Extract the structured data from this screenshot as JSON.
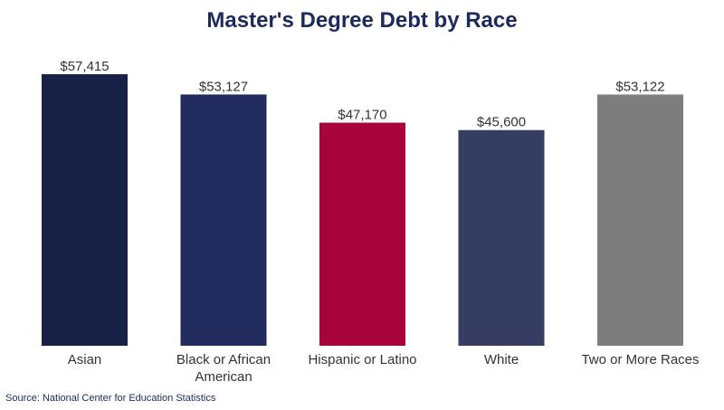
{
  "chart_data": {
    "type": "bar",
    "title": "Master's Degree Debt by Race",
    "categories": [
      "Asian",
      "Black or African American",
      "Hispanic or Latino",
      "White",
      "Two or More Races"
    ],
    "category_lines": [
      [
        "Asian"
      ],
      [
        "Black or African",
        "American"
      ],
      [
        "Hispanic or Latino"
      ],
      [
        "White"
      ],
      [
        "Two or More Races"
      ]
    ],
    "values": [
      57415,
      53127,
      47170,
      45600,
      53122
    ],
    "value_labels": [
      "$57,415",
      "$53,127",
      "$47,170",
      "$45,600",
      "$53,122"
    ],
    "colors": [
      "#172045",
      "#222b5e",
      "#a8033b",
      "#353e62",
      "#7d7d7d"
    ],
    "xlabel": "",
    "ylabel": "",
    "ylim": [
      0,
      60000
    ],
    "grid": false,
    "legend": "none"
  },
  "source": "Source: National Center for Education Statistics"
}
